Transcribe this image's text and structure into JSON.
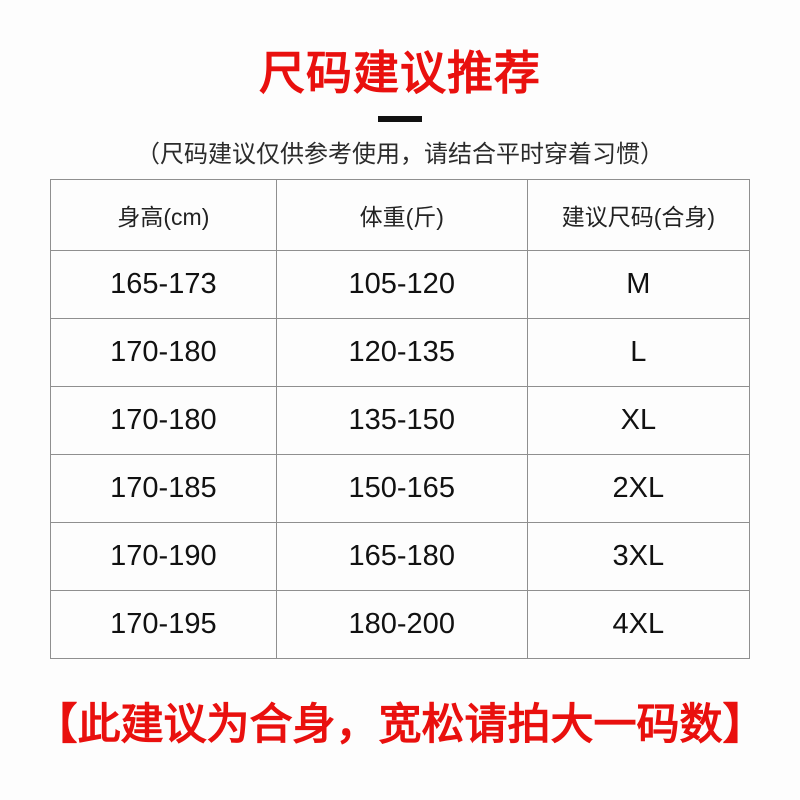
{
  "page": {
    "title": "尺码建议推荐",
    "subtitle": "（尺码建议仅供参考使用，请结合平时穿着习惯）",
    "footer_note": "【此建议为合身，宽松请拍大一码数】",
    "accent_color": "#e9100e",
    "table_border_color": "#8f8f8f"
  },
  "size_table": {
    "headers": [
      "身高(cm)",
      "体重(斤)",
      "建议尺码(合身)"
    ],
    "rows": [
      [
        "165-173",
        "105-120",
        "M"
      ],
      [
        "170-180",
        "120-135",
        "L"
      ],
      [
        "170-180",
        "135-150",
        "XL"
      ],
      [
        "170-185",
        "150-165",
        "2XL"
      ],
      [
        "170-190",
        "165-180",
        "3XL"
      ],
      [
        "170-195",
        "180-200",
        "4XL"
      ]
    ]
  }
}
